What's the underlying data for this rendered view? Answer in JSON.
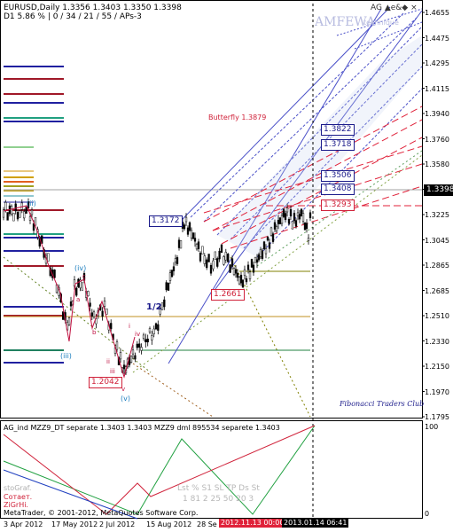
{
  "header": {
    "symbol_line": "EURUSD,Daily  1.3356 1.3403 1.3350 1.3398",
    "indicator_line": "D1  5.86 %  |  0 / 34 / 21 / 55 / APs-3"
  },
  "top_right": {
    "label": "AG ▲e&◆ ×"
  },
  "watermark": {
    "line1": "AMFEWA",
    "line2": "technique"
  },
  "annotations": {
    "butterfly": "Butterfly  1.3879",
    "fib_club": "Fibonacci Traders Club",
    "wave_label": "1/2",
    "wave_i_top": "(ii)",
    "wave_iv": "(iv)",
    "wave_iii": "(iii)",
    "wave_v": "(v)",
    "wave_c": "c",
    "wave_a": "a",
    "wave_b": "b",
    "wave_ii": "ii",
    "wave_iii_small": "iii",
    "wave_iv_small": "iv",
    "wave_v_small": "v",
    "wave_i_small": "i"
  },
  "price_boxes": {
    "p1": "1.3172",
    "p2": "1.2661",
    "p3": "1.2042",
    "p4": "1.3822",
    "p5": "1.3718",
    "p6": "1.3506",
    "p7": "1.3408",
    "p8": "1.3293",
    "current": "1.3398"
  },
  "y_axis": [
    "1.4655",
    "1.4475",
    "1.4295",
    "1.4115",
    "1.3940",
    "1.3760",
    "1.3580",
    "1.3400",
    "1.3225",
    "1.3045",
    "1.2865",
    "1.2685",
    "1.2510",
    "1.2330",
    "1.2150",
    "1.1970",
    "1.1795"
  ],
  "indicator_pane": {
    "title": "AG_ind  MZZ9_DT separate 1.3403 1.3403  MZZ9 dml 895534 separete 1.3403",
    "y_labels": [
      "100",
      "0"
    ],
    "left_text1": "stoGraf.",
    "left_text2": "Сотает.",
    "left_text3": "ZiGrHi.",
    "table_header": "Lst  %  S1  SL TP  Ds  St",
    "table_row": "1   81  2  25 50  20  3",
    "copyright": "MetaTrader, © 2001-2012, MetaQuotes Software Corp."
  },
  "x_axis": {
    "labels": [
      "3 Apr 2012",
      "17 May 2012",
      "2 Jul 2012",
      "15 Aug 2012",
      "28 Se"
    ],
    "red_marker": "2012.11.13 00:00",
    "dark_marker": "2013.01.14 06:41"
  },
  "colors": {
    "candle": "#000000",
    "fork_blue": "#4a50c8",
    "fork_red": "#e0223a",
    "wave_red": "#c01040"
  },
  "chart_data": {
    "type": "line",
    "title": "EURUSD,Daily",
    "ylim": [
      1.1795,
      1.4655
    ]
  }
}
